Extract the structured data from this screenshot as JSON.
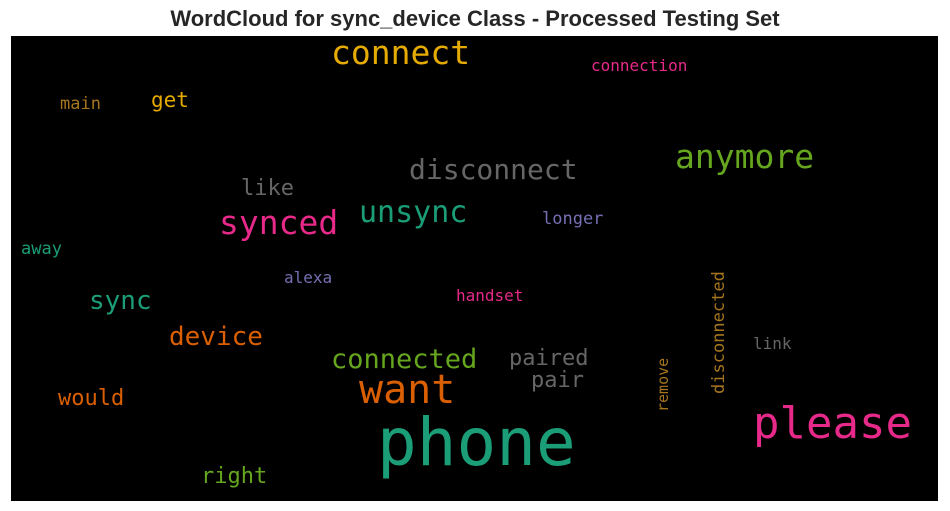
{
  "title": "WordCloud for sync_device Class - Processed Testing Set",
  "chart_data": {
    "type": "wordcloud",
    "title": "WordCloud for sync_device Class - Processed Testing Set",
    "background": "#000000",
    "words": [
      {
        "text": "phone",
        "color": "#1b9e77"
      },
      {
        "text": "please",
        "color": "#e7298a"
      },
      {
        "text": "want",
        "color": "#d95f02"
      },
      {
        "text": "connect",
        "color": "#e6ab02"
      },
      {
        "text": "anymore",
        "color": "#66a61e"
      },
      {
        "text": "synced",
        "color": "#e7298a"
      },
      {
        "text": "unsync",
        "color": "#1b9e77"
      },
      {
        "text": "disconnect",
        "color": "#666666"
      },
      {
        "text": "connected",
        "color": "#66a61e"
      },
      {
        "text": "device",
        "color": "#d95f02"
      },
      {
        "text": "sync",
        "color": "#1b9e77"
      },
      {
        "text": "paired",
        "color": "#666666"
      },
      {
        "text": "pair",
        "color": "#666666"
      },
      {
        "text": "would",
        "color": "#d95f02"
      },
      {
        "text": "right",
        "color": "#66a61e"
      },
      {
        "text": "like",
        "color": "#666666"
      },
      {
        "text": "get",
        "color": "#e6ab02"
      },
      {
        "text": "disconnected",
        "color": "#a6761d"
      },
      {
        "text": "connection",
        "color": "#e7298a"
      },
      {
        "text": "longer",
        "color": "#7570b3"
      },
      {
        "text": "handset",
        "color": "#e7298a"
      },
      {
        "text": "alexa",
        "color": "#7570b3"
      },
      {
        "text": "remove",
        "color": "#a6761d"
      },
      {
        "text": "main",
        "color": "#a6761d"
      },
      {
        "text": "away",
        "color": "#1b9e77"
      },
      {
        "text": "link",
        "color": "#666666"
      }
    ]
  }
}
